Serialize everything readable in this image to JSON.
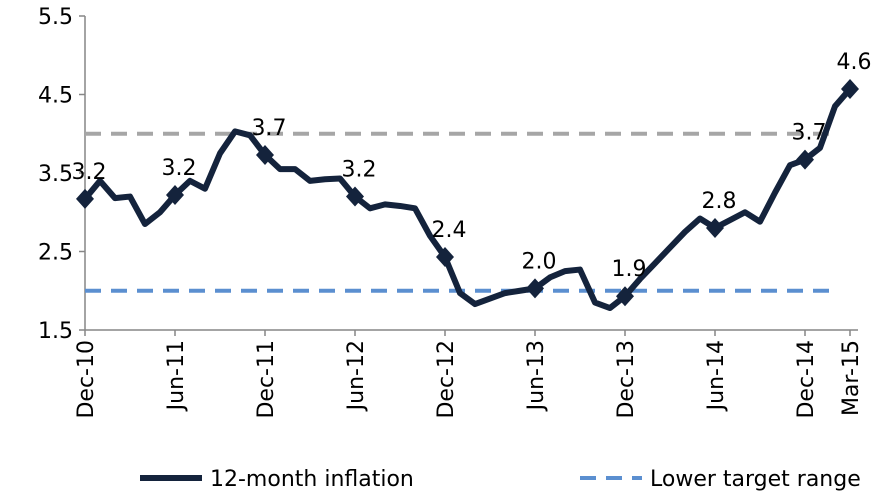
{
  "chart_data": {
    "type": "line",
    "categories": [
      "Dec-10",
      null,
      null,
      null,
      null,
      null,
      "Jun-11",
      null,
      null,
      null,
      null,
      null,
      "Dec-11",
      null,
      null,
      null,
      null,
      null,
      "Jun-12",
      null,
      null,
      null,
      null,
      null,
      "Dec-12",
      null,
      null,
      null,
      null,
      null,
      "Jun-13",
      null,
      null,
      null,
      null,
      null,
      "Dec-13",
      null,
      null,
      null,
      null,
      null,
      "Jun-14",
      null,
      null,
      null,
      null,
      null,
      "Dec-14",
      null,
      null,
      "Mar-15"
    ],
    "series": [
      {
        "name": "12-month inflation",
        "color": "#14233c",
        "style": "solid",
        "values": [
          3.17,
          3.4,
          3.18,
          3.2,
          2.85,
          3.0,
          3.22,
          3.4,
          3.3,
          3.75,
          4.03,
          3.98,
          3.73,
          3.55,
          3.55,
          3.4,
          3.42,
          3.43,
          3.2,
          3.05,
          3.1,
          3.08,
          3.05,
          2.7,
          2.43,
          1.97,
          1.83,
          1.9,
          1.97,
          2.0,
          2.03,
          2.17,
          2.25,
          2.27,
          1.85,
          1.78,
          1.93,
          2.15,
          2.35,
          2.55,
          2.75,
          2.92,
          2.8,
          2.9,
          3.0,
          2.88,
          3.25,
          3.6,
          3.67,
          3.82,
          4.35,
          4.57
        ],
        "value_labels": [
          "3.2",
          null,
          null,
          null,
          null,
          null,
          "3.2",
          null,
          null,
          null,
          null,
          null,
          "3.7",
          null,
          null,
          null,
          null,
          null,
          "3.2",
          null,
          null,
          null,
          null,
          null,
          "2.4",
          null,
          null,
          null,
          null,
          null,
          "2.0",
          null,
          null,
          null,
          null,
          null,
          "1.9",
          null,
          null,
          null,
          null,
          null,
          "2.8",
          null,
          null,
          null,
          null,
          null,
          "3.7",
          null,
          null,
          "4.6"
        ]
      },
      {
        "name": "Lower target range",
        "color": "#5b8fd0",
        "style": "dashed",
        "values": [
          2,
          2,
          2,
          2,
          2,
          2,
          2,
          2,
          2,
          2,
          2,
          2,
          2,
          2,
          2,
          2,
          2,
          2,
          2,
          2,
          2,
          2,
          2,
          2,
          2,
          2,
          2,
          2,
          2,
          2,
          2,
          2,
          2,
          2,
          2,
          2,
          2,
          2,
          2,
          2,
          2,
          2,
          2,
          2,
          2,
          2,
          2,
          2,
          2,
          2,
          2,
          null
        ]
      },
      {
        "color": "#a6a6a6",
        "style": "dashed",
        "values": [
          4,
          4,
          4,
          4,
          4,
          4,
          4,
          4,
          4,
          4,
          4,
          4,
          4,
          4,
          4,
          4,
          4,
          4,
          4,
          4,
          4,
          4,
          4,
          4,
          4,
          4,
          4,
          4,
          4,
          4,
          4,
          4,
          4,
          4,
          4,
          4,
          4,
          4,
          4,
          4,
          4,
          4,
          4,
          4,
          4,
          4,
          4,
          4,
          4,
          4,
          4,
          null
        ]
      }
    ],
    "ylim": [
      1.5,
      5.5
    ],
    "yticks": [
      1.5,
      2.5,
      3.5,
      4.5,
      5.5
    ],
    "grid": false,
    "legend": "bottom"
  }
}
